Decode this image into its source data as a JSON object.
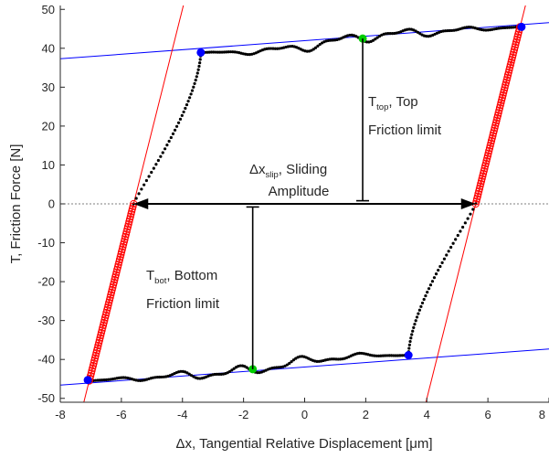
{
  "chart_data": {
    "type": "scatter",
    "xlabel": "Δx, Tangential Relative Displacement [μm]",
    "ylabel": "T, Friction Force [N]",
    "xlim": [
      -8,
      8
    ],
    "ylim": [
      -51,
      51
    ],
    "xticks": [
      -8,
      -6,
      -4,
      -2,
      0,
      2,
      4,
      6,
      8
    ],
    "yticks": [
      -50,
      -40,
      -30,
      -20,
      -10,
      0,
      10,
      20,
      30,
      40,
      50
    ],
    "grid": false,
    "colors": {
      "loop": "#000000",
      "stick_markers": "#ff0000",
      "friction_lines": "#0000ff",
      "stiffness_lines": "#ff0000",
      "key_points_blue": "#0000ff",
      "key_points_green": "#00cc00",
      "zero_line": "#000000"
    },
    "series": [
      {
        "marker": "dot",
        "color": "#000000",
        "x": [
          -3.4,
          -2.5,
          -1.5,
          -0.5,
          0,
          0.5,
          1.0,
          1.5,
          1.9,
          2.6,
          3.3,
          4.0,
          4.7,
          5.3,
          5.8,
          6.2,
          6.6,
          7.0,
          3.4,
          2.5,
          1.5,
          0.5,
          0,
          -0.5,
          -1.0,
          -1.5,
          -1.9,
          -2.6,
          -3.3,
          -4.0,
          -4.7,
          -5.3,
          -5.8,
          -6.2,
          -6.6,
          -7.0
        ],
        "y": [
          38.9,
          40.2,
          41.2,
          41.2,
          41.3,
          41.6,
          42.0,
          42.3,
          42.5,
          43.3,
          43.7,
          43.0,
          44.0,
          43.8,
          44.3,
          45.8,
          44.6,
          45.8,
          -38.9,
          -40.2,
          -41.2,
          -41.2,
          -41.3,
          -41.6,
          -42.0,
          -42.3,
          -42.5,
          -43.3,
          -43.7,
          -43.0,
          -44.0,
          -43.8,
          -44.3,
          -45.8,
          -44.6,
          -45.8
        ]
      },
      {
        "marker": "open-circle",
        "color": "#ff0000",
        "segments": [
          {
            "from": [
              5.6,
              0
            ],
            "to": [
              7.05,
              45.5
            ]
          },
          {
            "from": [
              -5.6,
              0
            ],
            "to": [
              -7.05,
              -45.5
            ]
          }
        ]
      }
    ],
    "friction_lines": [
      {
        "x": [
          -8,
          8
        ],
        "y": [
          37.3,
          46.6
        ]
      },
      {
        "x": [
          -8,
          8
        ],
        "y": [
          -46.6,
          -37.3
        ]
      }
    ],
    "stiffness_lines": [
      {
        "x": [
          -8,
          0.0
        ],
        "y": [
          -68.8,
          0
        ],
        "slope": 31.3,
        "through": [
          -5.6,
          0
        ]
      },
      {
        "x": [
          0.0,
          8
        ],
        "y": [
          0,
          0
        ],
        "slope": 31.3,
        "through": [
          5.6,
          0
        ]
      }
    ],
    "key_points": [
      {
        "x": -3.4,
        "y": 38.9,
        "color": "blue"
      },
      {
        "x": 7.1,
        "y": 45.5,
        "color": "blue"
      },
      {
        "x": 1.9,
        "y": 42.5,
        "color": "green"
      },
      {
        "x": -7.1,
        "y": -45.3,
        "color": "blue"
      },
      {
        "x": 3.4,
        "y": -38.9,
        "color": "blue"
      },
      {
        "x": -1.7,
        "y": -42.5,
        "color": "green"
      }
    ],
    "annotations": {
      "top": {
        "main": "T",
        "sub": "top",
        "rest": ", Top",
        "line2": "Friction limit"
      },
      "bot": {
        "main": "T",
        "sub": "bot",
        "rest": ", Bottom",
        "line2": "Friction limit"
      },
      "slip": {
        "main": "Δx",
        "sub": "slip",
        "rest": ", Sliding",
        "line2": "Amplitude"
      }
    },
    "arrows": {
      "slip": {
        "from": -5.6,
        "to": 5.6,
        "y": 0
      },
      "top_bar": {
        "x": 1.9,
        "y0": 0.8,
        "y1": 42.5
      },
      "bot_bar": {
        "x": -1.7,
        "y0": -0.8,
        "y1": -42.5
      }
    }
  }
}
